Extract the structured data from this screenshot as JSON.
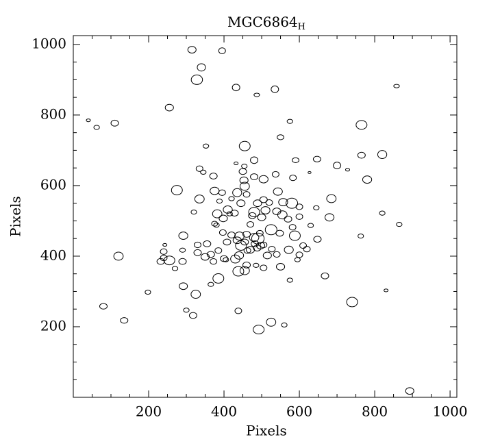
{
  "chart_data": {
    "type": "ellipse-scatter",
    "title": "MGC6864",
    "title_subscript": "H",
    "x_label": "Pixels",
    "y_label": "Pixels",
    "xlim": [
      0,
      1018
    ],
    "ylim": [
      0,
      1025
    ],
    "xticks": [
      200,
      400,
      600,
      800,
      1000
    ],
    "yticks": [
      200,
      400,
      600,
      800,
      1000
    ],
    "xminorticks": [
      50,
      100,
      150,
      250,
      300,
      350,
      450,
      500,
      550,
      650,
      700,
      750,
      850,
      900,
      950
    ],
    "yminorticks": [
      50,
      100,
      150,
      250,
      300,
      350,
      450,
      500,
      550,
      650,
      700,
      750,
      850,
      900,
      950
    ],
    "color": "#000000",
    "x": [
      315,
      395,
      340,
      328,
      432,
      535,
      487,
      858,
      255,
      40,
      62,
      110,
      575,
      765,
      550,
      455,
      352,
      590,
      432,
      480,
      647,
      454,
      700,
      765,
      820,
      728,
      335,
      345,
      372,
      450,
      537,
      627,
      505,
      480,
      453,
      275,
      375,
      455,
      543,
      583,
      780,
      395,
      420,
      435,
      460,
      335,
      388,
      505,
      557,
      580,
      445,
      489,
      520,
      685,
      645,
      600,
      320,
      382,
      410,
      428,
      480,
      510,
      540,
      555,
      570,
      600,
      475,
      500,
      470,
      375,
      398,
      380,
      415,
      680,
      820,
      865,
      630,
      582,
      525,
      588,
      548,
      495,
      460,
      441,
      420,
      397,
      408,
      292,
      355,
      330,
      435,
      445,
      455,
      480,
      490,
      482,
      497,
      488,
      470,
      505,
      527,
      572,
      620,
      610,
      648,
      763,
      243,
      240,
      290,
      240,
      232,
      255,
      290,
      120,
      270,
      330,
      350,
      365,
      372,
      400,
      405,
      385,
      430,
      440,
      462,
      515,
      540,
      600,
      595,
      550,
      505,
      485,
      460,
      438,
      455,
      385,
      365,
      292,
      325,
      575,
      668,
      740,
      830,
      198,
      80,
      300,
      318,
      438,
      135,
      525,
      560,
      492,
      893
    ],
    "y": [
      985,
      982,
      935,
      900,
      878,
      873,
      857,
      882,
      821,
      785,
      765,
      777,
      782,
      772,
      737,
      712,
      712,
      672,
      663,
      672,
      675,
      655,
      657,
      686,
      688,
      645,
      648,
      638,
      627,
      640,
      632,
      637,
      618,
      625,
      615,
      587,
      585,
      598,
      583,
      622,
      617,
      580,
      563,
      580,
      575,
      562,
      556,
      560,
      553,
      550,
      550,
      550,
      552,
      563,
      537,
      540,
      525,
      520,
      532,
      522,
      525,
      530,
      527,
      517,
      505,
      512,
      515,
      510,
      490,
      492,
      507,
      488,
      520,
      510,
      522,
      490,
      487,
      482,
      475,
      458,
      465,
      465,
      462,
      457,
      460,
      467,
      440,
      458,
      435,
      432,
      445,
      430,
      440,
      453,
      450,
      435,
      430,
      423,
      418,
      432,
      420,
      418,
      420,
      430,
      448,
      457,
      432,
      413,
      417,
      395,
      385,
      388,
      385,
      400,
      365,
      410,
      398,
      405,
      385,
      393,
      390,
      416,
      392,
      402,
      416,
      402,
      405,
      404,
      390,
      370,
      367,
      374,
      375,
      357,
      359,
      337,
      320,
      315,
      292,
      332,
      344,
      270,
      303,
      298,
      258,
      247,
      232,
      245,
      218,
      213,
      205,
      192,
      18
    ],
    "widths": [
      22,
      18,
      22,
      30,
      20,
      20,
      15,
      15,
      22,
      11,
      15,
      20,
      15,
      29,
      18,
      29,
      15,
      18,
      11,
      20,
      20,
      15,
      20,
      20,
      24,
      11,
      18,
      15,
      20,
      20,
      18,
      8,
      24,
      20,
      22,
      29,
      24,
      25,
      24,
      18,
      24,
      18,
      15,
      24,
      18,
      25,
      15,
      20,
      24,
      31,
      22,
      22,
      18,
      25,
      15,
      18,
      15,
      25,
      24,
      20,
      29,
      24,
      22,
      25,
      20,
      18,
      20,
      22,
      18,
      16,
      22,
      15,
      15,
      24,
      15,
      15,
      15,
      18,
      31,
      29,
      20,
      18,
      20,
      25,
      20,
      18,
      20,
      24,
      20,
      18,
      22,
      29,
      20,
      25,
      33,
      20,
      22,
      20,
      22,
      18,
      18,
      24,
      18,
      18,
      20,
      15,
      11,
      18,
      15,
      18,
      20,
      29,
      20,
      25,
      15,
      20,
      22,
      20,
      18,
      20,
      15,
      18,
      25,
      24,
      18,
      22,
      18,
      18,
      15,
      22,
      18,
      15,
      20,
      29,
      25,
      29,
      15,
      22,
      25,
      15,
      20,
      29,
      11,
      15,
      20,
      15,
      20,
      18,
      20,
      25,
      15,
      29,
      22
    ],
    "heights": [
      19,
      17,
      21,
      27,
      19,
      19,
      10,
      10,
      19,
      8,
      12,
      17,
      12,
      25,
      14,
      27,
      12,
      14,
      8,
      19,
      16,
      12,
      19,
      17,
      23,
      8,
      16,
      12,
      17,
      17,
      16,
      6,
      21,
      17,
      19,
      27,
      21,
      23,
      21,
      16,
      21,
      16,
      12,
      23,
      16,
      23,
      12,
      17,
      21,
      29,
      19,
      19,
      16,
      23,
      12,
      16,
      12,
      23,
      21,
      17,
      27,
      21,
      19,
      23,
      17,
      16,
      17,
      19,
      16,
      14,
      19,
      12,
      12,
      21,
      12,
      12,
      12,
      16,
      29,
      27,
      17,
      16,
      17,
      23,
      17,
      16,
      17,
      21,
      17,
      16,
      19,
      27,
      17,
      23,
      31,
      17,
      19,
      17,
      19,
      16,
      16,
      21,
      16,
      16,
      17,
      12,
      8,
      16,
      12,
      16,
      17,
      25,
      17,
      23,
      12,
      17,
      19,
      17,
      16,
      17,
      12,
      16,
      23,
      21,
      16,
      19,
      16,
      16,
      12,
      19,
      16,
      12,
      17,
      27,
      23,
      27,
      12,
      19,
      23,
      12,
      17,
      27,
      8,
      12,
      16,
      12,
      17,
      16,
      16,
      23,
      12,
      25,
      19
    ]
  }
}
